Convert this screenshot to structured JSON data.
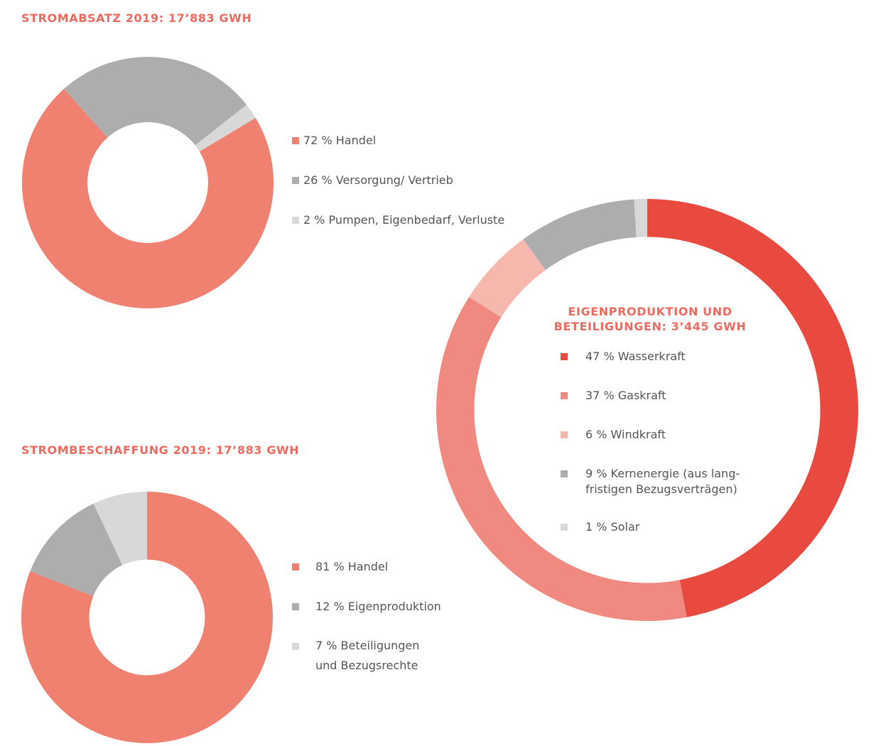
{
  "chart_data": [
    {
      "type": "pie",
      "title": "STROMABSATZ 2019: 17’883 GWH",
      "slices": [
        {
          "label": "72 % Handel",
          "value": 72,
          "color": "#f08070"
        },
        {
          "label": "26 % Versorgung/ Vertrieb",
          "value": 26,
          "color": "#adadad"
        },
        {
          "label": "2 % Pumpen, Eigenbedarf, Verluste",
          "value": 2,
          "color": "#d8d8d8"
        }
      ],
      "inner_ratio": 0.48
    },
    {
      "type": "pie",
      "title": "STROMBESCHAFFUNG 2019: 17’883 GWH",
      "slices": [
        {
          "label": "81 % Handel",
          "value": 81,
          "color": "#f08070"
        },
        {
          "label": "12 % Eigenproduktion",
          "value": 12,
          "color": "#adadad"
        },
        {
          "label": "7 % Beteiligungen und Bezugsrechte",
          "value": 7,
          "color": "#d8d8d8"
        }
      ],
      "inner_ratio": 0.46
    },
    {
      "type": "pie",
      "title": "EIGENPRODUKTION UND BETEILIGUNGEN: 3’445 GWH",
      "slices": [
        {
          "label": "47 % Wasserkraft",
          "value": 47,
          "color": "#e84a40"
        },
        {
          "label": "37 % Gaskraft",
          "value": 37,
          "color": "#f08a80"
        },
        {
          "label": "6 % Windkraft",
          "value": 6,
          "color": "#f6b8ac"
        },
        {
          "label": "9 % Kernenergie (aus lang-\nfristigen Bezugsverträgen)",
          "value": 9,
          "color": "#adadad"
        },
        {
          "label": "1 % Solar",
          "value": 1,
          "color": "#d8d8d8"
        }
      ],
      "inner_ratio": 0.82
    }
  ]
}
